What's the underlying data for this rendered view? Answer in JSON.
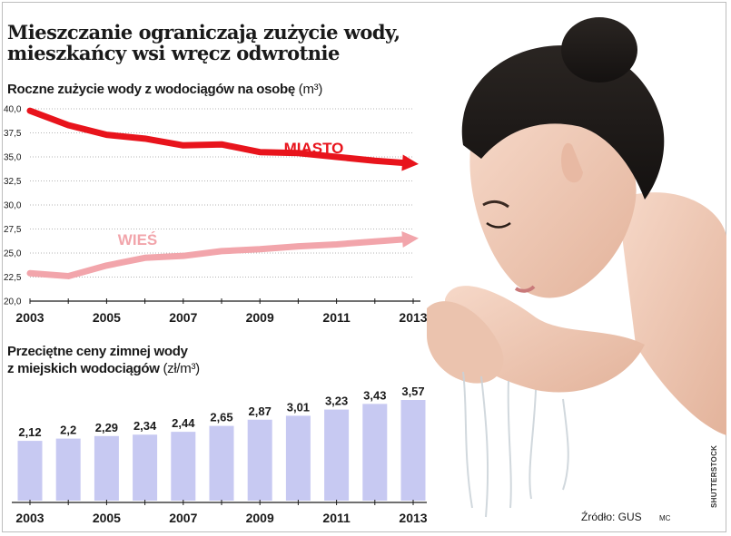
{
  "headline": {
    "line1": "Mieszczanie ograniczają zużycie wody,",
    "line2": "mieszkańcy wsi wręcz odwrotnie"
  },
  "source": "Źródło: GUS",
  "author": "MC",
  "photo_credit": "SHUTTERSTOCK",
  "colors": {
    "miasto": "#e8141c",
    "wies": "#f2a5ab",
    "bars": "#c7c9f2",
    "axis": "#1a1a1a",
    "grid": "#b5b5b5"
  },
  "chart_data": [
    {
      "type": "line",
      "title": "Roczne zużycie wody z wodociągów na osobę",
      "unit": "(m³)",
      "x": [
        2003,
        2004,
        2005,
        2006,
        2007,
        2008,
        2009,
        2010,
        2011,
        2012,
        2013
      ],
      "xticks": [
        "2003",
        "2005",
        "2007",
        "2009",
        "2011",
        "2013"
      ],
      "yticks": [
        "40,0",
        "37,5",
        "35,0",
        "32,5",
        "30,0",
        "27,5",
        "25,0",
        "22,5",
        "20,0"
      ],
      "ylim": [
        20,
        40
      ],
      "grid": true,
      "series": [
        {
          "name": "MIASTO",
          "color": "#e8141c",
          "values": [
            39.8,
            38.3,
            37.3,
            36.9,
            36.2,
            36.3,
            35.5,
            35.4,
            35.0,
            34.6,
            34.3
          ]
        },
        {
          "name": "WIEŚ",
          "color": "#f2a5ab",
          "values": [
            22.9,
            22.6,
            23.7,
            24.5,
            24.7,
            25.2,
            25.4,
            25.7,
            25.9,
            26.2,
            26.5
          ]
        }
      ]
    },
    {
      "type": "bar",
      "title": "Przeciętne ceny zimnej wody z miejskich wodociągów",
      "title_line1": "Przeciętne ceny zimnej wody",
      "title_line2": "z miejskich wodociągów",
      "unit": "(zł/m³)",
      "categories": [
        "2003",
        "2004",
        "2005",
        "2006",
        "2007",
        "2008",
        "2009",
        "2010",
        "2011",
        "2012",
        "2013"
      ],
      "values": [
        2.12,
        2.2,
        2.29,
        2.34,
        2.44,
        2.65,
        2.87,
        3.01,
        3.23,
        3.43,
        3.57
      ],
      "labels": [
        "2,12",
        "2,2",
        "2,29",
        "2,34",
        "2,44",
        "2,65",
        "2,87",
        "3,01",
        "3,23",
        "3,43",
        "3,57"
      ],
      "xticks": [
        "2003",
        "2005",
        "2007",
        "2009",
        "2011",
        "2013"
      ],
      "ylim": [
        0,
        3.57
      ]
    }
  ]
}
